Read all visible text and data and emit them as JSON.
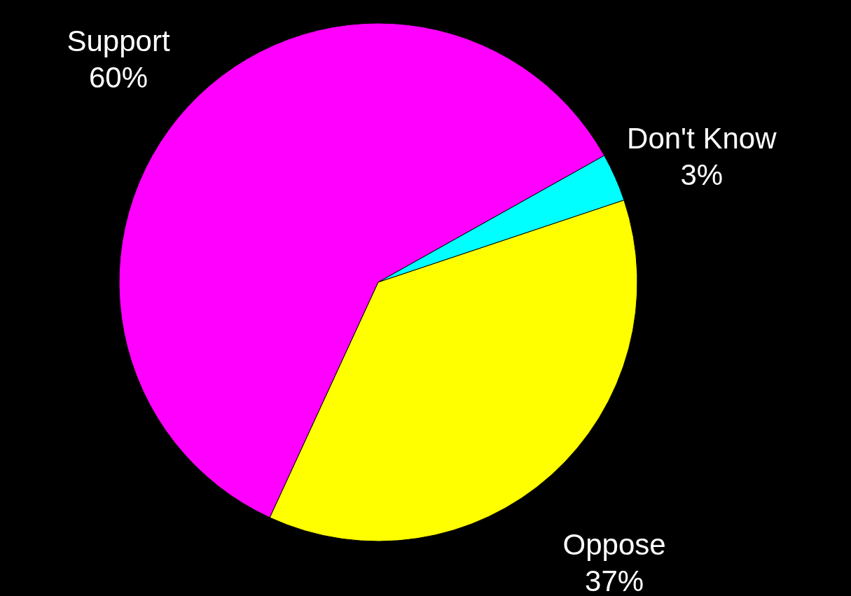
{
  "chart_data": {
    "type": "pie",
    "categories": [
      "Support",
      "Don't Know",
      "Oppose"
    ],
    "values": [
      60,
      3,
      37
    ],
    "value_labels": [
      "60%",
      "3%",
      "37%"
    ],
    "colors": [
      "#ff00ff",
      "#00ffff",
      "#ffff00"
    ]
  }
}
